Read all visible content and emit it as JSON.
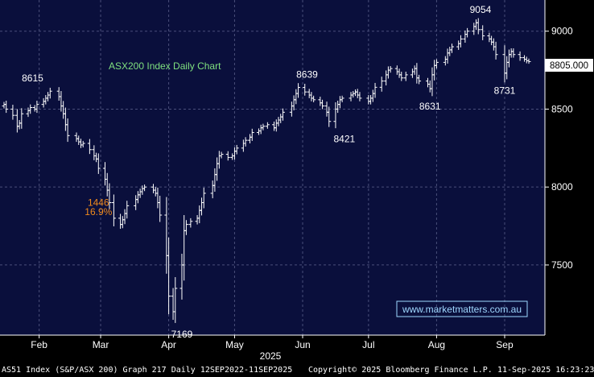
{
  "chart_data": {
    "type": "ohlc",
    "title": "ASX200 Index Daily Chart",
    "xlabel": "2025",
    "ylabel": "",
    "ylim": [
      7050,
      9200
    ],
    "yticks": [
      7500,
      8000,
      8500,
      9000
    ],
    "ytick_labels": [
      "7500",
      "8000",
      "8500",
      "9000"
    ],
    "x_months": [
      {
        "label": "Feb",
        "date": "2025-02-01"
      },
      {
        "label": "Mar",
        "date": "2025-03-01"
      },
      {
        "label": "Apr",
        "date": "2025-04-01"
      },
      {
        "label": "May",
        "date": "2025-05-01"
      },
      {
        "label": "Jun",
        "date": "2025-06-01"
      },
      {
        "label": "Jul",
        "date": "2025-07-01"
      },
      {
        "label": "Aug",
        "date": "2025-08-01"
      },
      {
        "label": "Sep",
        "date": "2025-09-01"
      }
    ],
    "x_range": [
      "2025-01-16",
      "2025-09-12"
    ],
    "grid": true,
    "last_price": "8805.000",
    "series": [
      {
        "closes": [
          8530,
          8500,
          8460,
          8390,
          8410,
          8470,
          8490,
          8510,
          8500,
          8530,
          8550,
          8570,
          8590,
          8615,
          8580,
          8520,
          8470,
          8400,
          8330,
          8310,
          8290,
          8270,
          8280,
          8240,
          8200,
          8180,
          8120,
          8050,
          7980,
          7900,
          7800,
          7760,
          7790,
          7830,
          7880,
          7920,
          7950,
          7970,
          7990,
          8000,
          7980,
          7960,
          7900,
          7820,
          7560,
          7300,
          7200,
          7350,
          7500,
          7720,
          7760,
          7780,
          7800,
          7850,
          7900,
          7960,
          8010,
          8080,
          8150,
          8200,
          8210,
          8190,
          8200,
          8230,
          8250,
          8280,
          8300,
          8320,
          8350,
          8360,
          8380,
          8390,
          8400,
          8380,
          8410,
          8430,
          8450,
          8480,
          8520,
          8560,
          8600,
          8639,
          8610,
          8590,
          8570,
          8560,
          8540,
          8520,
          8480,
          8421,
          8500,
          8530,
          8560,
          8570,
          8590,
          8600,
          8610,
          8590,
          8570,
          8550,
          8570,
          8600,
          8640,
          8680,
          8720,
          8750,
          8760,
          8740,
          8720,
          8700,
          8720,
          8740,
          8760,
          8700,
          8680,
          8660,
          8631,
          8720,
          8780,
          8800,
          8820,
          8860,
          8880,
          8900,
          8920,
          8950,
          8980,
          9000,
          9030,
          9054,
          9010,
          8970,
          8950,
          8930,
          8900,
          8850,
          8731,
          8800,
          8850,
          8870,
          8850,
          8830,
          8820,
          8810,
          8805
        ]
      }
    ],
    "annotations": [
      {
        "text": "8615",
        "x": "2025-01-29",
        "y": 8615,
        "color": "#ffffff"
      },
      {
        "text": "1446",
        "x": "2025-02-28",
        "y": 7880,
        "color": "#f08a1c"
      },
      {
        "text": "16.9%",
        "x": "2025-02-28",
        "y": 7820,
        "color": "#f08a1c"
      },
      {
        "text": "7169",
        "x": "2025-04-07",
        "y": 7169,
        "color": "#ffffff"
      },
      {
        "text": "8639",
        "x": "2025-06-03",
        "y": 8639,
        "color": "#ffffff"
      },
      {
        "text": "8421",
        "x": "2025-06-20",
        "y": 8421,
        "color": "#ffffff"
      },
      {
        "text": "8631",
        "x": "2025-07-29",
        "y": 8631,
        "color": "#ffffff"
      },
      {
        "text": "9054",
        "x": "2025-08-21",
        "y": 9054,
        "color": "#ffffff"
      },
      {
        "text": "8731",
        "x": "2025-09-01",
        "y": 8731,
        "color": "#ffffff"
      }
    ]
  },
  "watermark": "www.marketmatters.com.au",
  "footer": {
    "left": "AS51 Index (S&P/ASX 200) Graph 217  Daily 12SEP2022-11SEP2025",
    "middle": "Copyright© 2025 Bloomberg Finance L.P.",
    "right": "11-Sep-2025 16:23:23"
  },
  "colors": {
    "plot_bg": "#0a0f3c",
    "grid": "#4a4f7a",
    "bars": "#ffffff",
    "title": "#7fe07f",
    "watermark": "#9fd8ff",
    "watermark_border": "#9fd8ff",
    "orange": "#f08a1c"
  }
}
